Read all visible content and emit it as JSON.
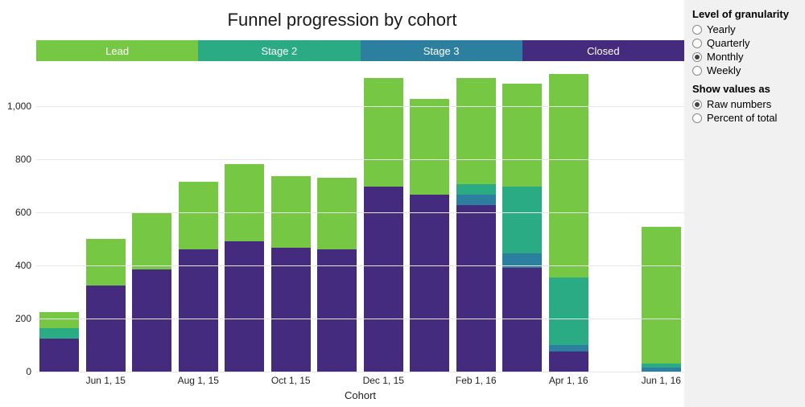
{
  "title": "Funnel progression by cohort",
  "title_fontsize": 22,
  "title_color": "#1a1a1a",
  "background_color": "#ffffff",
  "side_panel_bg": "#f1f1f1",
  "legend": {
    "items": [
      {
        "label": "Lead",
        "color": "#76c844"
      },
      {
        "label": "Stage 2",
        "color": "#2bab84"
      },
      {
        "label": "Stage 3",
        "color": "#2c7f9e"
      },
      {
        "label": "Closed",
        "color": "#452b7e"
      }
    ],
    "text_color": "#ffffff",
    "fontsize": 13
  },
  "chart": {
    "type": "stacked-bar",
    "xlabel": "Cohort",
    "xlabel_fontsize": 13,
    "y_min": 0,
    "y_max": 1150,
    "y_ticks": [
      0,
      200,
      400,
      600,
      800,
      1000
    ],
    "y_tick_fontsize": 12,
    "grid_color": "#e6e6e6",
    "bar_width_ratio": 0.86,
    "categories": [
      "",
      "Jun 1, 15",
      "",
      "Aug 1, 15",
      "",
      "Oct 1, 15",
      "",
      "Dec 1, 15",
      "",
      "Feb 1, 16",
      "",
      "Apr 1, 16",
      "",
      "Jun 1, 16"
    ],
    "series_order": [
      "closed",
      "stage3",
      "stage2",
      "lead"
    ],
    "series_colors": {
      "lead": "#76c844",
      "stage2": "#2bab84",
      "stage3": "#2c7f9e",
      "closed": "#452b7e"
    },
    "data": [
      {
        "closed": 125,
        "stage3": 0,
        "stage2": 40,
        "lead": 60
      },
      {
        "closed": 325,
        "stage3": 0,
        "stage2": 0,
        "lead": 175
      },
      {
        "closed": 385,
        "stage3": 0,
        "stage2": 0,
        "lead": 215
      },
      {
        "closed": 460,
        "stage3": 0,
        "stage2": 0,
        "lead": 255
      },
      {
        "closed": 490,
        "stage3": 0,
        "stage2": 0,
        "lead": 290
      },
      {
        "closed": 465,
        "stage3": 0,
        "stage2": 0,
        "lead": 270
      },
      {
        "closed": 460,
        "stage3": 0,
        "stage2": 0,
        "lead": 270
      },
      {
        "closed": 695,
        "stage3": 0,
        "stage2": 0,
        "lead": 410
      },
      {
        "closed": 665,
        "stage3": 0,
        "stage2": 0,
        "lead": 360
      },
      {
        "closed": 625,
        "stage3": 40,
        "stage2": 40,
        "lead": 400
      },
      {
        "closed": 390,
        "stage3": 55,
        "stage2": 250,
        "lead": 390
      },
      {
        "closed": 75,
        "stage3": 25,
        "stage2": 255,
        "lead": 765
      },
      {
        "closed": 0,
        "stage3": 0,
        "stage2": 0,
        "lead": 0
      },
      {
        "closed": 0,
        "stage3": 15,
        "stage2": 15,
        "lead": 515
      }
    ]
  },
  "controls": {
    "granularity": {
      "label": "Level of granularity",
      "options": [
        "Yearly",
        "Quarterly",
        "Monthly",
        "Weekly"
      ],
      "selected": "Monthly"
    },
    "values_as": {
      "label": "Show values as",
      "options": [
        "Raw numbers",
        "Percent of total"
      ],
      "selected": "Raw numbers"
    }
  }
}
